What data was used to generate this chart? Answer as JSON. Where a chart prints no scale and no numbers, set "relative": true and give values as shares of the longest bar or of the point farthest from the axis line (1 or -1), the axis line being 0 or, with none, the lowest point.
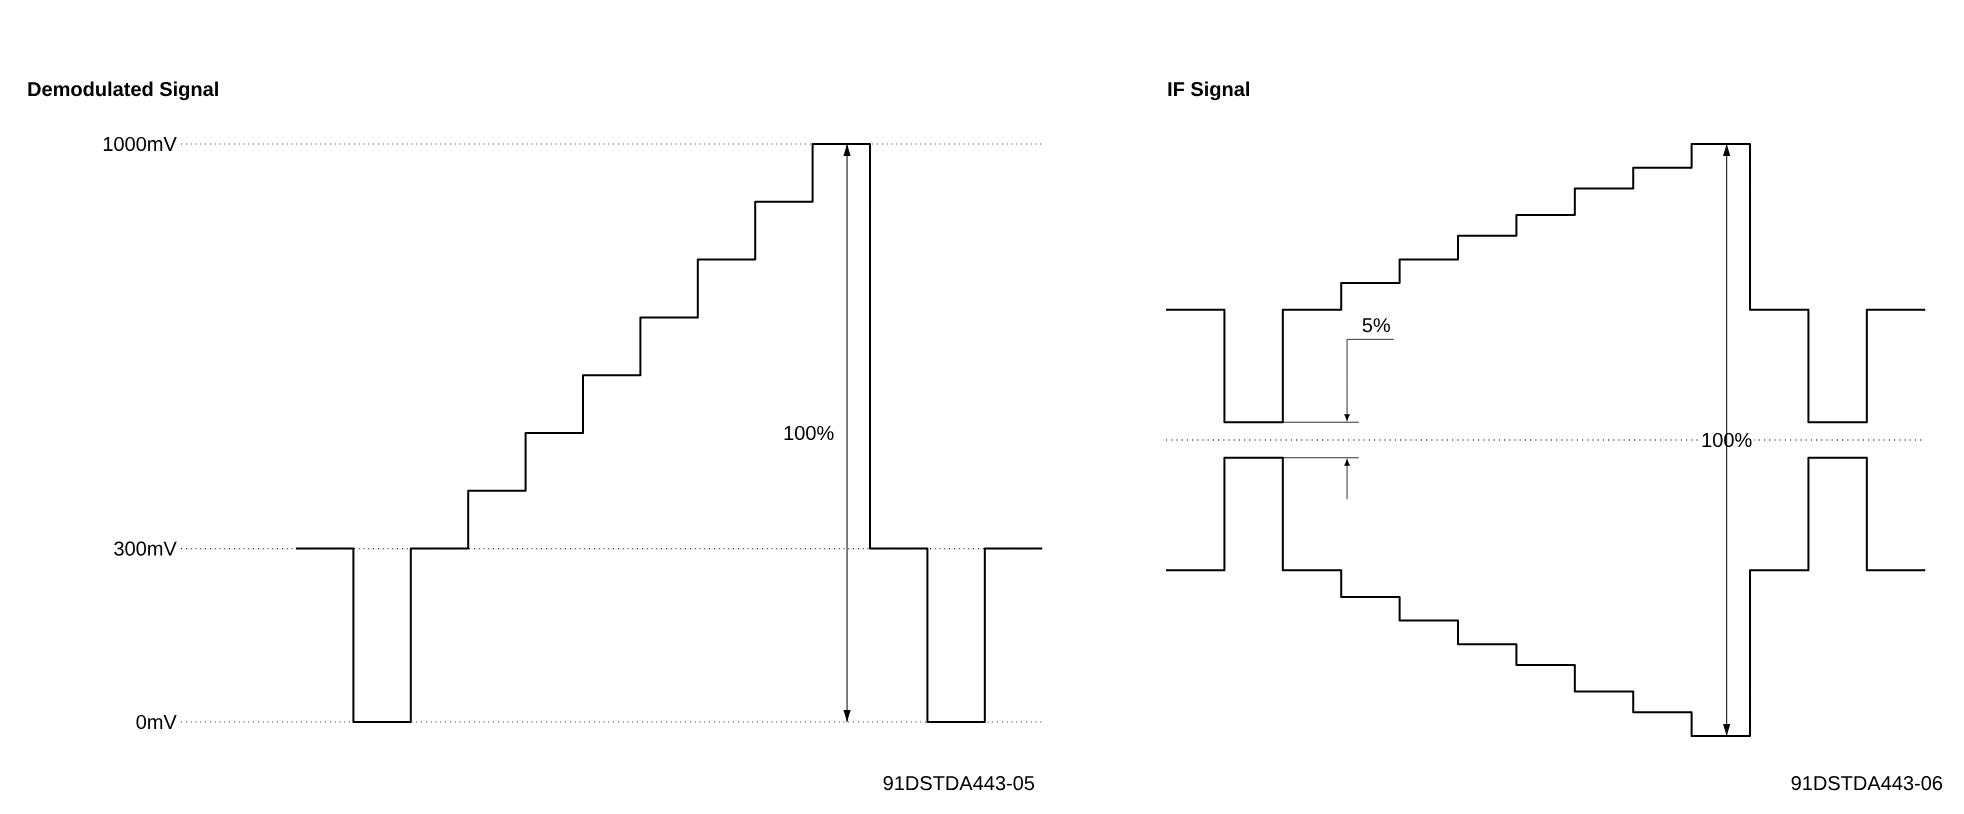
{
  "chart_data": [
    {
      "type": "step",
      "title": "Demodulated Signal",
      "categories": [
        null,
        null,
        null,
        null,
        null,
        null,
        null,
        null,
        null,
        null,
        null,
        null,
        null,
        null
      ],
      "values": [
        300,
        0,
        300,
        400,
        500,
        600,
        700,
        800,
        900,
        1000,
        300,
        0,
        300,
        300
      ],
      "color": "#000000",
      "ylim": [
        0,
        1000
      ],
      "yticks": [
        {
          "value": 0,
          "label": "0mV"
        },
        {
          "value": 300,
          "label": "300mV"
        },
        {
          "value": 1000,
          "label": "1000mV"
        }
      ],
      "grid": "y",
      "annotations": [
        "100%",
        "91DSTDA443-05"
      ]
    },
    {
      "type": "step",
      "title": "IF Signal",
      "categories": [
        null,
        null,
        null,
        null,
        null,
        null,
        null,
        null,
        null,
        null,
        null,
        null,
        null,
        null
      ],
      "relative": true,
      "series": [
        {
          "color": "#000000",
          "values": [
            0.44,
            0.06,
            0.44,
            0.53,
            0.61,
            0.69,
            0.76,
            0.85,
            0.92,
            1.0,
            0.44,
            0.06,
            0.44,
            0.44
          ]
        },
        {
          "color": "#000000",
          "values": [
            -0.44,
            -0.06,
            -0.44,
            -0.53,
            -0.61,
            -0.69,
            -0.76,
            -0.85,
            -0.92,
            -1.0,
            -0.44,
            -0.06,
            -0.44,
            -0.44
          ]
        }
      ],
      "ref_lines": [
        {
          "axis": "y",
          "value": 0,
          "line_style": "dotted"
        }
      ],
      "annotations": [
        "5%",
        "100%",
        "91DSTDA443-06"
      ]
    }
  ]
}
